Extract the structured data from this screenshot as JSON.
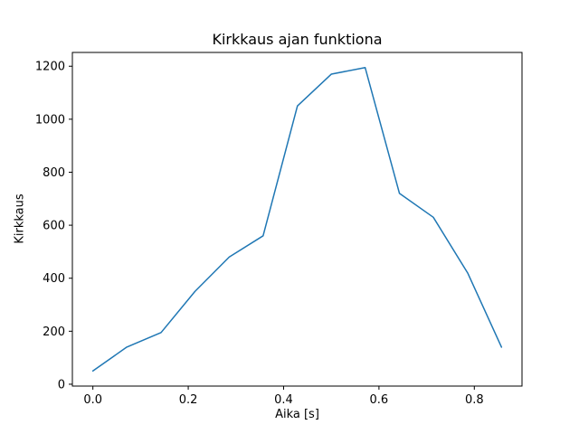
{
  "chart_data": {
    "type": "line",
    "title": "Kirkkaus ajan funktiona",
    "xlabel": "Aika [s]",
    "ylabel": "Kirkkaus",
    "x": [
      0.0,
      0.071,
      0.143,
      0.214,
      0.286,
      0.357,
      0.429,
      0.5,
      0.571,
      0.643,
      0.714,
      0.786,
      0.857
    ],
    "y": [
      50,
      140,
      195,
      350,
      480,
      560,
      1050,
      1170,
      1195,
      720,
      630,
      420,
      140
    ],
    "x_ticks": [
      0.0,
      0.2,
      0.4,
      0.6,
      0.8
    ],
    "y_ticks": [
      0,
      200,
      400,
      600,
      800,
      1000,
      1200
    ],
    "xlim": [
      -0.043,
      0.9
    ],
    "ylim": [
      -7,
      1252
    ],
    "line_color": "#1f77b4",
    "axis_color": "#000000",
    "grid": false,
    "legend": "none",
    "background": "#ffffff"
  }
}
